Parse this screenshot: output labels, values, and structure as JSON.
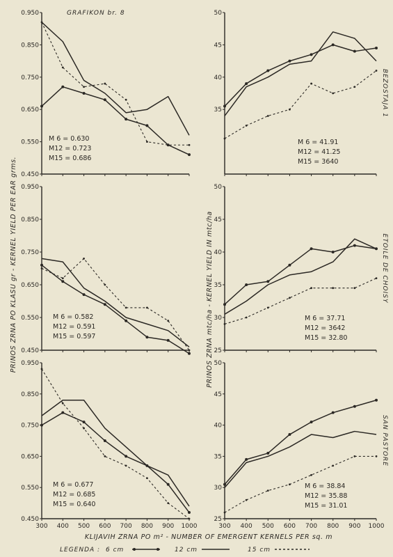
{
  "figure": {
    "title": "GRAFIKON br. 8",
    "xlabel": "KLIJAVIH ZRNA PO m² - NUMBER OF EMERGENT KERNELS PER sq. m",
    "ylabel_left": "PRINOS ZRNA PO KLASU gr - KERNEL YIELD PER EAR grms.",
    "ylabel_right": "PRINOS ZRNA mtc/ha - KERNEL YIELD IN mtc/ha",
    "legend_label": "LEGENDA :",
    "legend": [
      "6 cm",
      "12 cm",
      "15 cm"
    ],
    "line_color": "#2b2824"
  },
  "chart_data": [
    {
      "type": "line",
      "site": "",
      "metric": "kernel yield per ear",
      "x": [
        300,
        400,
        500,
        600,
        700,
        800,
        900,
        1000
      ],
      "ylim": [
        0.45,
        0.95
      ],
      "yticks": [
        "0.950",
        "0.850",
        "0.750",
        "0.650",
        "0.550",
        "0.450"
      ],
      "series": [
        {
          "name": "6 cm",
          "style": "circles",
          "values": [
            0.66,
            0.72,
            0.7,
            0.68,
            0.62,
            0.6,
            0.54,
            0.51
          ]
        },
        {
          "name": "12 cm",
          "style": "solid",
          "values": [
            0.92,
            0.86,
            0.74,
            0.7,
            0.64,
            0.65,
            0.69,
            0.57
          ]
        },
        {
          "name": "15 cm",
          "style": "dashed",
          "values": [
            0.92,
            0.78,
            0.72,
            0.73,
            0.68,
            0.55,
            0.54,
            0.54
          ]
        }
      ],
      "annotations": [
        "M 6 = 0.630",
        "M12 = 0.723",
        "M15 = 0.686"
      ]
    },
    {
      "type": "line",
      "site": "BEZOSTAJA 1",
      "metric": "kernel yield mtc/ha",
      "x": [
        300,
        400,
        500,
        600,
        700,
        800,
        900,
        1000
      ],
      "ylim": [
        25,
        50
      ],
      "yticks": [
        "50",
        "45",
        "40",
        "35"
      ],
      "series": [
        {
          "name": "6 cm",
          "style": "circles",
          "values": [
            35.5,
            39.0,
            41.0,
            42.5,
            43.5,
            45.0,
            44.0,
            44.5
          ]
        },
        {
          "name": "12 cm",
          "style": "solid",
          "values": [
            34.0,
            38.5,
            40.0,
            42.0,
            42.5,
            47.0,
            46.0,
            42.5
          ]
        },
        {
          "name": "15 cm",
          "style": "dashed",
          "values": [
            30.5,
            32.5,
            34.0,
            35.0,
            39.0,
            37.5,
            38.5,
            41.0
          ]
        }
      ],
      "annotations": [
        "M 6 = 41.91",
        "M12 = 41.25",
        "M15 = 3640"
      ]
    },
    {
      "type": "line",
      "site": "",
      "metric": "kernel yield per ear",
      "x": [
        300,
        400,
        500,
        600,
        700,
        800,
        900,
        1000
      ],
      "ylim": [
        0.45,
        0.95
      ],
      "yticks": [
        "0.950",
        "0.850",
        "0.750",
        "0.650",
        "0.550",
        "0.450"
      ],
      "series": [
        {
          "name": "6 cm",
          "style": "circles",
          "values": [
            0.71,
            0.66,
            0.62,
            0.59,
            0.54,
            0.49,
            0.48,
            0.44
          ]
        },
        {
          "name": "12 cm",
          "style": "solid",
          "values": [
            0.73,
            0.72,
            0.64,
            0.6,
            0.55,
            0.53,
            0.51,
            0.46
          ]
        },
        {
          "name": "15 cm",
          "style": "dashed",
          "values": [
            0.7,
            0.67,
            0.73,
            0.65,
            0.58,
            0.58,
            0.54,
            0.45
          ]
        }
      ],
      "annotations": [
        "M 6 = 0.582",
        "M12 = 0.591",
        "M15 = 0.597"
      ]
    },
    {
      "type": "line",
      "site": "ETOILE DE CHOISY",
      "metric": "kernel yield mtc/ha",
      "x": [
        300,
        400,
        500,
        600,
        700,
        800,
        900,
        1000
      ],
      "ylim": [
        25,
        50
      ],
      "yticks": [
        "50",
        "45",
        "40",
        "35",
        "30",
        "25"
      ],
      "series": [
        {
          "name": "6 cm",
          "style": "circles",
          "values": [
            32.0,
            35.0,
            35.5,
            38.0,
            40.5,
            40.0,
            41.0,
            40.5
          ]
        },
        {
          "name": "12 cm",
          "style": "solid",
          "values": [
            30.5,
            32.5,
            35.0,
            36.5,
            37.0,
            38.5,
            42.0,
            40.5
          ]
        },
        {
          "name": "15 cm",
          "style": "dashed",
          "values": [
            29.0,
            30.0,
            31.5,
            33.0,
            34.5,
            34.5,
            34.5,
            36.0
          ]
        }
      ],
      "annotations": [
        "M 6 = 37.71",
        "M12 = 3642",
        "M15 = 32.80"
      ]
    },
    {
      "type": "line",
      "site": "",
      "metric": "kernel yield per ear",
      "x": [
        300,
        400,
        500,
        600,
        700,
        800,
        900,
        1000
      ],
      "ylim": [
        0.45,
        0.95
      ],
      "yticks": [
        "0.950",
        "0.850",
        "0.750",
        "0.650",
        "0.550",
        "0.450"
      ],
      "series": [
        {
          "name": "6 cm",
          "style": "circles",
          "values": [
            0.75,
            0.79,
            0.76,
            0.7,
            0.65,
            0.62,
            0.56,
            0.47
          ]
        },
        {
          "name": "12 cm",
          "style": "solid",
          "values": [
            0.78,
            0.83,
            0.83,
            0.74,
            0.68,
            0.62,
            0.59,
            0.49
          ]
        },
        {
          "name": "15 cm",
          "style": "dashed",
          "values": [
            0.93,
            0.82,
            0.74,
            0.65,
            0.62,
            0.58,
            0.5,
            0.45
          ]
        }
      ],
      "annotations": [
        "M 6 = 0.677",
        "M12 = 0.685",
        "M15 = 0.640"
      ]
    },
    {
      "type": "line",
      "site": "SAN PASTORE",
      "metric": "kernel yield mtc/ha",
      "x": [
        300,
        400,
        500,
        600,
        700,
        800,
        900,
        1000
      ],
      "ylim": [
        25,
        50
      ],
      "yticks": [
        "50",
        "45",
        "40",
        "35",
        "30",
        "25"
      ],
      "series": [
        {
          "name": "6 cm",
          "style": "circles",
          "values": [
            30.5,
            34.5,
            35.5,
            38.5,
            40.5,
            42.0,
            43.0,
            44.0
          ]
        },
        {
          "name": "12 cm",
          "style": "solid",
          "values": [
            30.0,
            34.0,
            35.0,
            36.5,
            38.5,
            38.0,
            39.0,
            38.5
          ]
        },
        {
          "name": "15 cm",
          "style": "dashed",
          "values": [
            26.0,
            28.0,
            29.5,
            30.5,
            32.0,
            33.5,
            35.0,
            35.0
          ]
        }
      ],
      "annotations": [
        "M 6 = 38.84",
        "M12 = 35.88",
        "M15 = 31.01"
      ]
    }
  ],
  "x_tick_labels": [
    "300",
    "400",
    "500",
    "600",
    "700",
    "800",
    "900",
    "1000"
  ]
}
